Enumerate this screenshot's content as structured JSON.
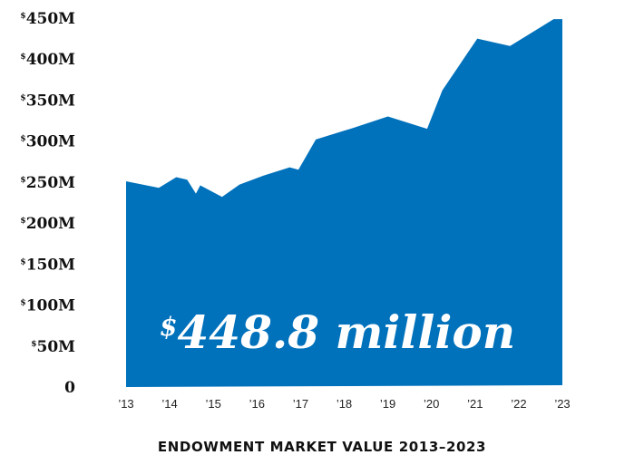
{
  "chart_data": {
    "type": "area",
    "title": "ENDOWMENT MARKET VALUE 2013–2023",
    "xlabel": "",
    "ylabel": "",
    "ylim": [
      0,
      450
    ],
    "y_ticks": [
      {
        "currency": "$",
        "text": "450M",
        "value": 450
      },
      {
        "currency": "$",
        "text": "400M",
        "value": 400
      },
      {
        "currency": "$",
        "text": "350M",
        "value": 350
      },
      {
        "currency": "$",
        "text": "300M",
        "value": 300
      },
      {
        "currency": "$",
        "text": "250M",
        "value": 250
      },
      {
        "currency": "$",
        "text": "200M",
        "value": 200
      },
      {
        "currency": "$",
        "text": "150M",
        "value": 150
      },
      {
        "currency": "$",
        "text": "100M",
        "value": 100
      },
      {
        "currency": "$",
        "text": "50M",
        "value": 50
      },
      {
        "currency": "",
        "text": "0",
        "value": 0
      }
    ],
    "x_ticks": [
      {
        "label": "’13",
        "year": 2013
      },
      {
        "label": "’14",
        "year": 2014
      },
      {
        "label": "’15",
        "year": 2015
      },
      {
        "label": "’16",
        "year": 2016
      },
      {
        "label": "’17",
        "year": 2017
      },
      {
        "label": "’18",
        "year": 2018
      },
      {
        "label": "’19",
        "year": 2019
      },
      {
        "label": "’20",
        "year": 2020
      },
      {
        "label": "’21",
        "year": 2021
      },
      {
        "label": "’22",
        "year": 2022
      },
      {
        "label": "’23",
        "year": 2023
      }
    ],
    "series": [
      {
        "color": "#0071bb",
        "points": [
          {
            "x": 2013.0,
            "y": 251
          },
          {
            "x": 2013.75,
            "y": 243
          },
          {
            "x": 2014.15,
            "y": 256
          },
          {
            "x": 2014.4,
            "y": 253
          },
          {
            "x": 2014.6,
            "y": 236
          },
          {
            "x": 2014.7,
            "y": 246
          },
          {
            "x": 2015.2,
            "y": 232
          },
          {
            "x": 2015.6,
            "y": 247
          },
          {
            "x": 2016.15,
            "y": 258
          },
          {
            "x": 2016.75,
            "y": 268
          },
          {
            "x": 2016.95,
            "y": 265
          },
          {
            "x": 2017.35,
            "y": 302
          },
          {
            "x": 2018.2,
            "y": 316
          },
          {
            "x": 2019.0,
            "y": 330
          },
          {
            "x": 2019.9,
            "y": 315
          },
          {
            "x": 2020.25,
            "y": 362
          },
          {
            "x": 2021.05,
            "y": 425
          },
          {
            "x": 2021.8,
            "y": 416
          },
          {
            "x": 2022.8,
            "y": 448.8
          },
          {
            "x": 2023.0,
            "y": 448.8
          }
        ]
      }
    ],
    "annotation": {
      "currency": "$",
      "text": "448.8 million",
      "value": 448.8
    }
  }
}
